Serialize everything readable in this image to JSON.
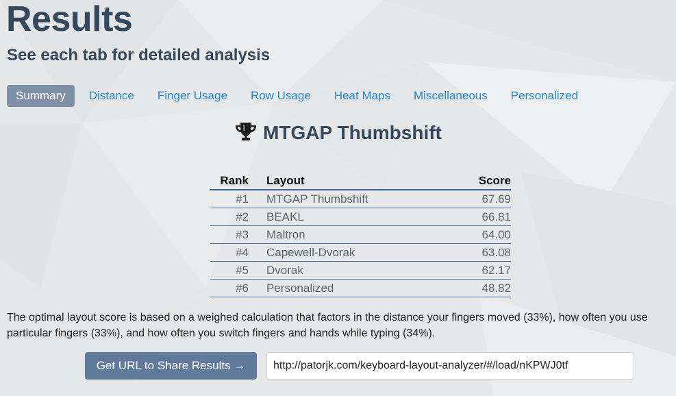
{
  "header": {
    "title": "Results",
    "subtitle": "See each tab for detailed analysis"
  },
  "tabs": [
    {
      "label": "Summary",
      "active": true
    },
    {
      "label": "Distance",
      "active": false
    },
    {
      "label": "Finger Usage",
      "active": false
    },
    {
      "label": "Row Usage",
      "active": false
    },
    {
      "label": "Heat Maps",
      "active": false
    },
    {
      "label": "Miscellaneous",
      "active": false
    },
    {
      "label": "Personalized",
      "active": false
    }
  ],
  "summary": {
    "winner_icon": "trophy-icon",
    "winner_name": "MTGAP Thumbshift",
    "table": {
      "headers": {
        "rank": "Rank",
        "layout": "Layout",
        "score": "Score"
      },
      "rows": [
        {
          "rank": "#1",
          "layout": "MTGAP Thumbshift",
          "score": "67.69"
        },
        {
          "rank": "#2",
          "layout": "BEAKL",
          "score": "66.81"
        },
        {
          "rank": "#3",
          "layout": "Maltron",
          "score": "64.00"
        },
        {
          "rank": "#4",
          "layout": "Capewell-Dvorak",
          "score": "63.08"
        },
        {
          "rank": "#5",
          "layout": "Dvorak",
          "score": "62.17"
        },
        {
          "rank": "#6",
          "layout": "Personalized",
          "score": "48.82"
        }
      ]
    },
    "explanation": "The optimal layout score is based on a weighed calculation that factors in the distance your fingers moved (33%), how often you use particular fingers (33%), and how often you switch fingers and hands while typing (34%)."
  },
  "share": {
    "button_label": "Get URL to Share Results →",
    "url": "http://patorjk.com/keyboard-layout-analyzer/#/load/nKPWJ0tf"
  },
  "colors": {
    "background": "#e6e7e8",
    "heading": "#34495e",
    "link": "#2488c9",
    "active_tab": "#7f8fa6",
    "button": "#5f7a9a",
    "table_rule": "#3f6aa3"
  }
}
